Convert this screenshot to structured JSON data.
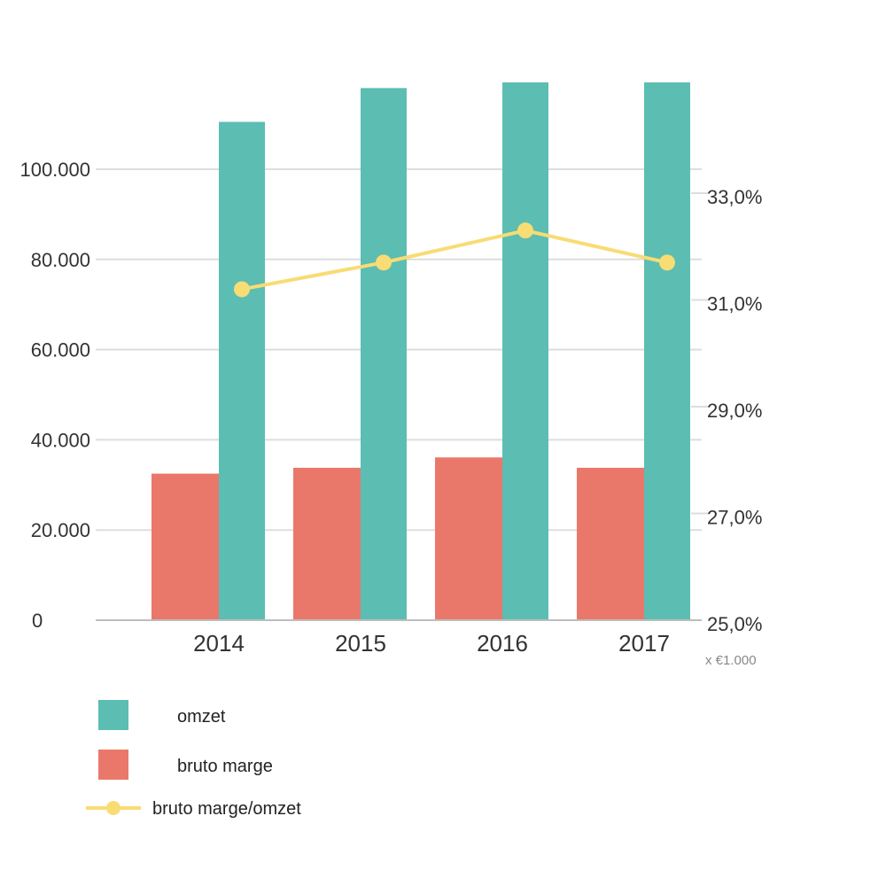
{
  "chart_data": {
    "type": "bar",
    "categories": [
      "2014",
      "2015",
      "2016",
      "2017"
    ],
    "series": [
      {
        "name": "omzet",
        "type": "bar",
        "axis": "left",
        "color": "#5cbdb3",
        "values": [
          110500,
          118000,
          120000,
          120000
        ]
      },
      {
        "name": "bruto marge",
        "type": "bar",
        "axis": "left",
        "color": "#ea786a",
        "values": [
          32500,
          33800,
          36100,
          33800
        ]
      },
      {
        "name": "bruto marge/omzet",
        "type": "line",
        "axis": "right",
        "color": "#f8dc74",
        "values": [
          31.2,
          31.7,
          32.3,
          31.7
        ]
      }
    ],
    "y_left": {
      "ticks": [
        0,
        20000,
        40000,
        60000,
        80000,
        100000
      ],
      "tick_labels": [
        "0",
        "20.000",
        "40.000",
        "60.000",
        "80.000",
        "100.000"
      ],
      "range": [
        0,
        120000
      ],
      "unit": "x €1.000"
    },
    "y_right": {
      "ticks": [
        25,
        27,
        29,
        31,
        33
      ],
      "tick_labels": [
        "25,0%",
        "27,0%",
        "29,0%",
        "31,0%",
        "33,0%"
      ],
      "range": [
        25,
        35
      ]
    },
    "grid": true,
    "legend_position": "bottom-left"
  }
}
